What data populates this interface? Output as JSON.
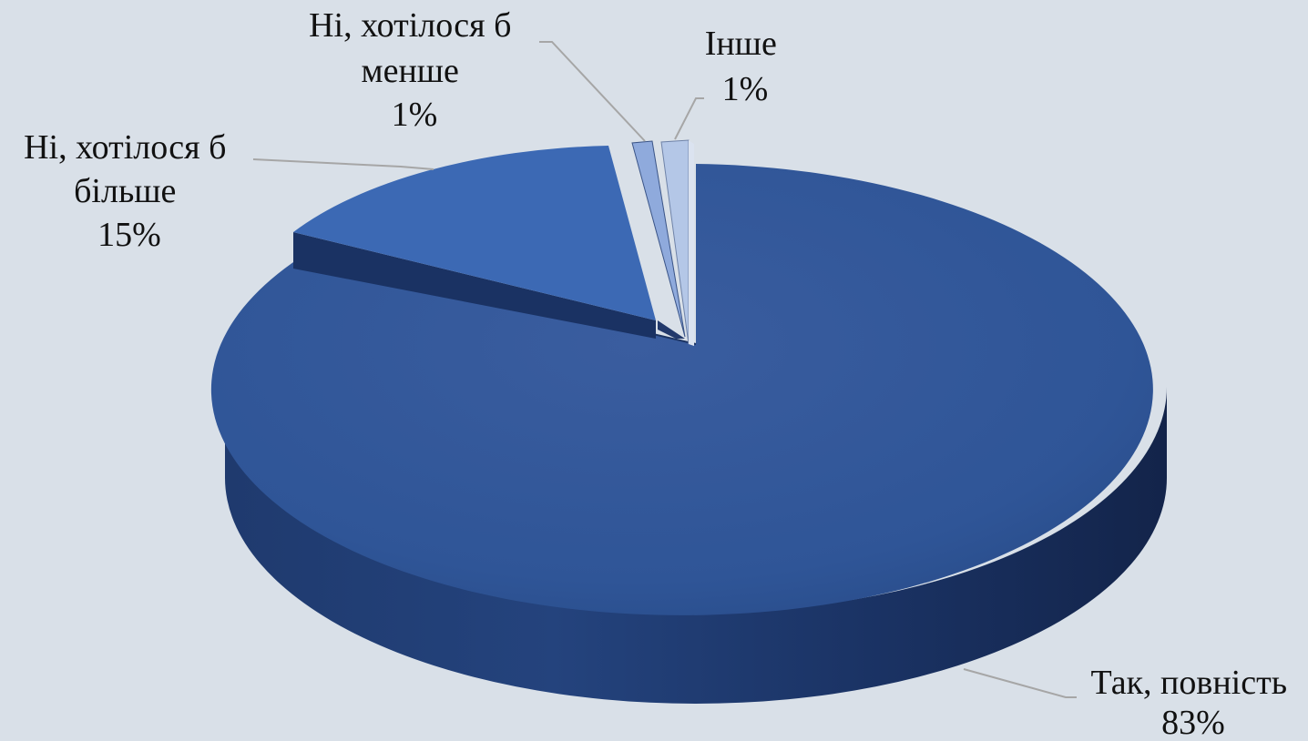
{
  "chart_data": {
    "type": "pie",
    "three_d": true,
    "slices": [
      {
        "label": "Так, повність",
        "value": 83,
        "value_text": "83%",
        "color": "#2f5597"
      },
      {
        "label": "Ні, хотілося б більше",
        "label_lines": [
          "Ні, хотілося б",
          "більше"
        ],
        "value": 15,
        "value_text": "15%",
        "color": "#3c69b4"
      },
      {
        "label": "Ні, хотілося б менше",
        "label_lines": [
          "Ні, хотілося б",
          "менше"
        ],
        "value": 1,
        "value_text": "1%",
        "color": "#8faadc"
      },
      {
        "label": "Інше",
        "label_lines": [
          "Інше"
        ],
        "value": 1,
        "value_text": "1%",
        "color": "#b4c7e7"
      }
    ],
    "legend": "none",
    "data_labels": "category and percentage"
  },
  "colors": {
    "background": "#d9e0e8",
    "leader_line": "#a6a6a6",
    "text": "#111111"
  }
}
